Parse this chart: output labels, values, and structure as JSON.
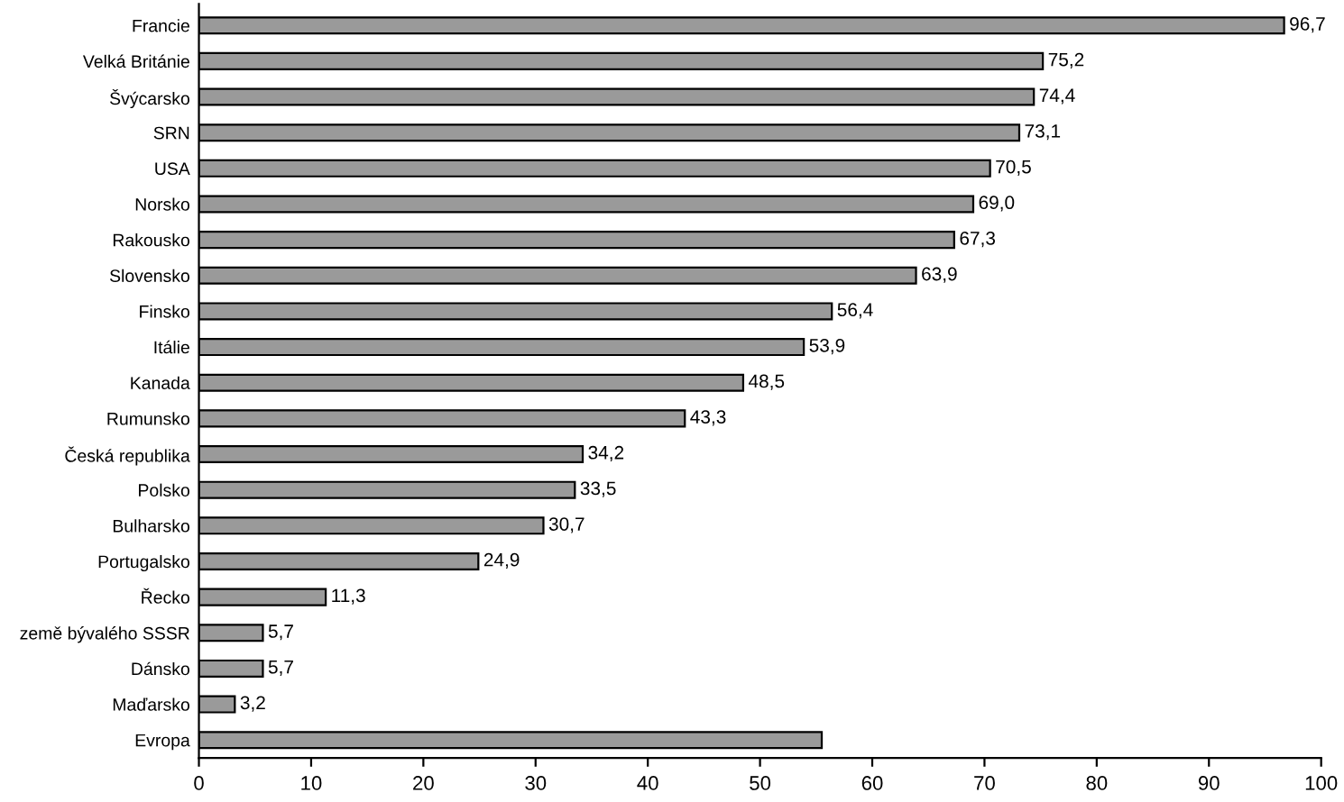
{
  "chart_data": {
    "type": "bar",
    "orientation": "horizontal",
    "categories": [
      "Francie",
      "Velká Británie",
      "Švýcarsko",
      "SRN",
      "USA",
      "Norsko",
      "Rakousko",
      "Slovensko",
      "Finsko",
      "Itálie",
      "Kanada",
      "Rumunsko",
      "Česká republika",
      "Polsko",
      "Bulharsko",
      "Portugalsko",
      "Řecko",
      "země bývalého SSSR",
      "Dánsko",
      "Maďarsko",
      "Evropa"
    ],
    "values": [
      96.7,
      75.2,
      74.4,
      73.1,
      70.5,
      69.0,
      67.3,
      63.9,
      56.4,
      53.9,
      48.5,
      43.3,
      34.2,
      33.5,
      30.7,
      24.9,
      11.3,
      5.7,
      5.7,
      3.2,
      55.5
    ],
    "value_labels": [
      "96,7",
      "75,2",
      "74,4",
      "73,1",
      "70,5",
      "69,0",
      "67,3",
      "63,9",
      "56,4",
      "53,9",
      "48,5",
      "43,3",
      "34,2",
      "33,5",
      "30,7",
      "24,9",
      "11,3",
      "5,7",
      "5,7",
      "3,2",
      null
    ],
    "color": "#9a9a9a",
    "xlim": [
      0,
      100
    ],
    "xticks": [
      0,
      10,
      20,
      30,
      40,
      50,
      60,
      70,
      80,
      90,
      100
    ],
    "grid": false
  }
}
